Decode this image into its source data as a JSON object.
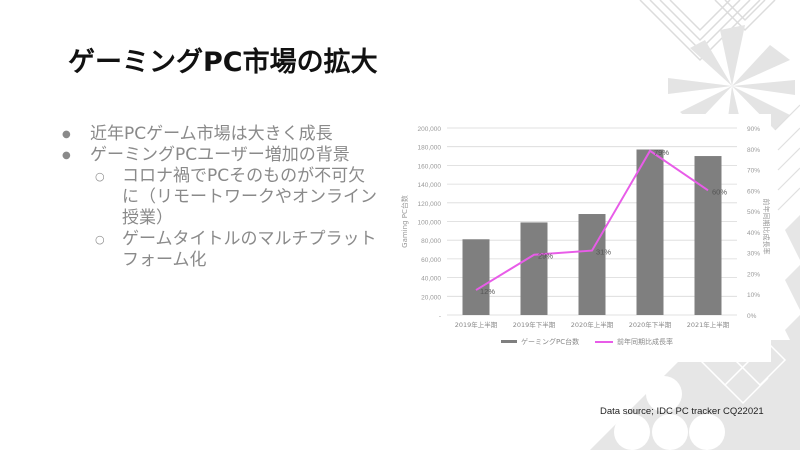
{
  "slide": {
    "title": "ゲーミングPC市場の拡大",
    "bullets": [
      {
        "level": 1,
        "text": "近年PCゲーム市場は大きく成長"
      },
      {
        "level": 1,
        "text": "ゲーミングPCユーザー増加の背景"
      },
      {
        "level": 2,
        "text": "コロナ禍でPCそのものが不可欠に（リモートワークやオンライン授業）"
      },
      {
        "level": 2,
        "text": "ゲームタイトルのマルチプラットフォーム化"
      }
    ],
    "source": "Data source; IDC PC tracker CQ22021",
    "accent_color": "#ff2a00"
  },
  "chart_data": {
    "type": "bar",
    "title": "",
    "categories": [
      "2019年上半期",
      "2019年下半期",
      "2020年上半期",
      "2020年下半期",
      "2021年上半期"
    ],
    "series": [
      {
        "name": "ゲーミングPC台数",
        "type": "bar",
        "axis": "left",
        "color": "#7f7f7f",
        "values": [
          81000,
          99000,
          108000,
          177000,
          170000
        ]
      },
      {
        "name": "前年同期比成長率",
        "type": "line",
        "axis": "right",
        "color": "#e85ce8",
        "values": [
          12,
          29,
          31,
          79,
          60
        ],
        "labels": [
          "12%",
          "29%",
          "31%",
          "79%",
          "60%"
        ]
      }
    ],
    "ylabel": "Gaming PC台数",
    "y2label": "前年同期比成長率",
    "ylim": [
      0,
      200000
    ],
    "y2lim": [
      0,
      90
    ],
    "yticks": [
      "-",
      "20,000",
      "40,000",
      "60,000",
      "80,000",
      "100,000",
      "120,000",
      "140,000",
      "160,000",
      "180,000",
      "200,000"
    ],
    "y2ticks": [
      "0%",
      "10%",
      "20%",
      "30%",
      "40%",
      "50%",
      "60%",
      "70%",
      "80%",
      "90%"
    ],
    "grid": true,
    "legend_position": "bottom"
  }
}
